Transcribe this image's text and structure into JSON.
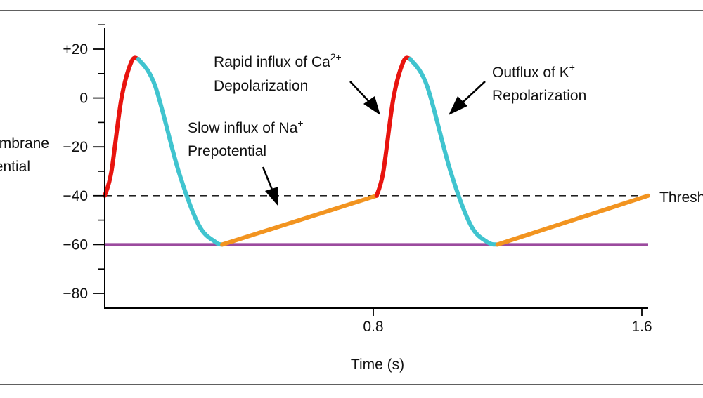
{
  "chart_data": {
    "type": "line",
    "title": "",
    "xlabel": "Time (s)",
    "ylabel": "Membrane potential",
    "ylabel_lines": [
      "Membrane",
      "potential"
    ],
    "xlim": [
      0,
      1.6
    ],
    "ylim": [
      -85,
      30
    ],
    "x_ticks": [
      0.8,
      1.6
    ],
    "x_tick_labels": [
      "0.8",
      "1.6"
    ],
    "y_ticks": [
      20,
      0,
      -20,
      -40,
      -60,
      -80
    ],
    "y_tick_labels": [
      "+20",
      "0",
      "−20",
      "−40",
      "−60",
      "−80"
    ],
    "y_minor_step": 10,
    "threshold": {
      "value": -40,
      "label": "Threshold",
      "style": "dashed"
    },
    "resting_line": {
      "value": -60,
      "color": "#9b4a9e"
    },
    "phase_colors": {
      "depolarization": "#e8140f",
      "repolarization": "#40c4cf",
      "prepotential": "#f29420"
    },
    "series": [
      {
        "name": "Depolarization (cycle 1)",
        "phase": "depolarization",
        "x": [
          0.0,
          0.02,
          0.05,
          0.08,
          0.1
        ],
        "y": [
          -40,
          -30,
          0,
          15,
          16
        ]
      },
      {
        "name": "Repolarization (cycle 1)",
        "phase": "repolarization",
        "x": [
          0.1,
          0.15,
          0.22,
          0.28,
          0.33,
          0.35
        ],
        "y": [
          16,
          5,
          -30,
          -52,
          -59,
          -60
        ]
      },
      {
        "name": "Prepotential (cycle 1)",
        "phase": "prepotential",
        "x": [
          0.35,
          0.81
        ],
        "y": [
          -60,
          -40
        ]
      },
      {
        "name": "Depolarization (cycle 2)",
        "phase": "depolarization",
        "x": [
          0.81,
          0.83,
          0.86,
          0.89,
          0.91
        ],
        "y": [
          -40,
          -30,
          0,
          15,
          16
        ]
      },
      {
        "name": "Repolarization (cycle 2)",
        "phase": "repolarization",
        "x": [
          0.91,
          0.96,
          1.03,
          1.09,
          1.14,
          1.17
        ],
        "y": [
          16,
          5,
          -30,
          -52,
          -59,
          -60
        ]
      },
      {
        "name": "Prepotential (cycle 2)",
        "phase": "prepotential",
        "x": [
          1.17,
          1.62
        ],
        "y": [
          -60,
          -40
        ]
      }
    ],
    "annotations": [
      {
        "id": "depolarization",
        "lines": [
          "Rapid influx of Ca",
          "Depolarization"
        ],
        "superscript": "2+"
      },
      {
        "id": "repolarization",
        "lines": [
          "Outflux of K",
          "Repolarization"
        ],
        "superscript": "+"
      },
      {
        "id": "prepotential",
        "lines": [
          "Slow influx of Na",
          "Prepotential"
        ],
        "superscript": "+"
      }
    ]
  }
}
